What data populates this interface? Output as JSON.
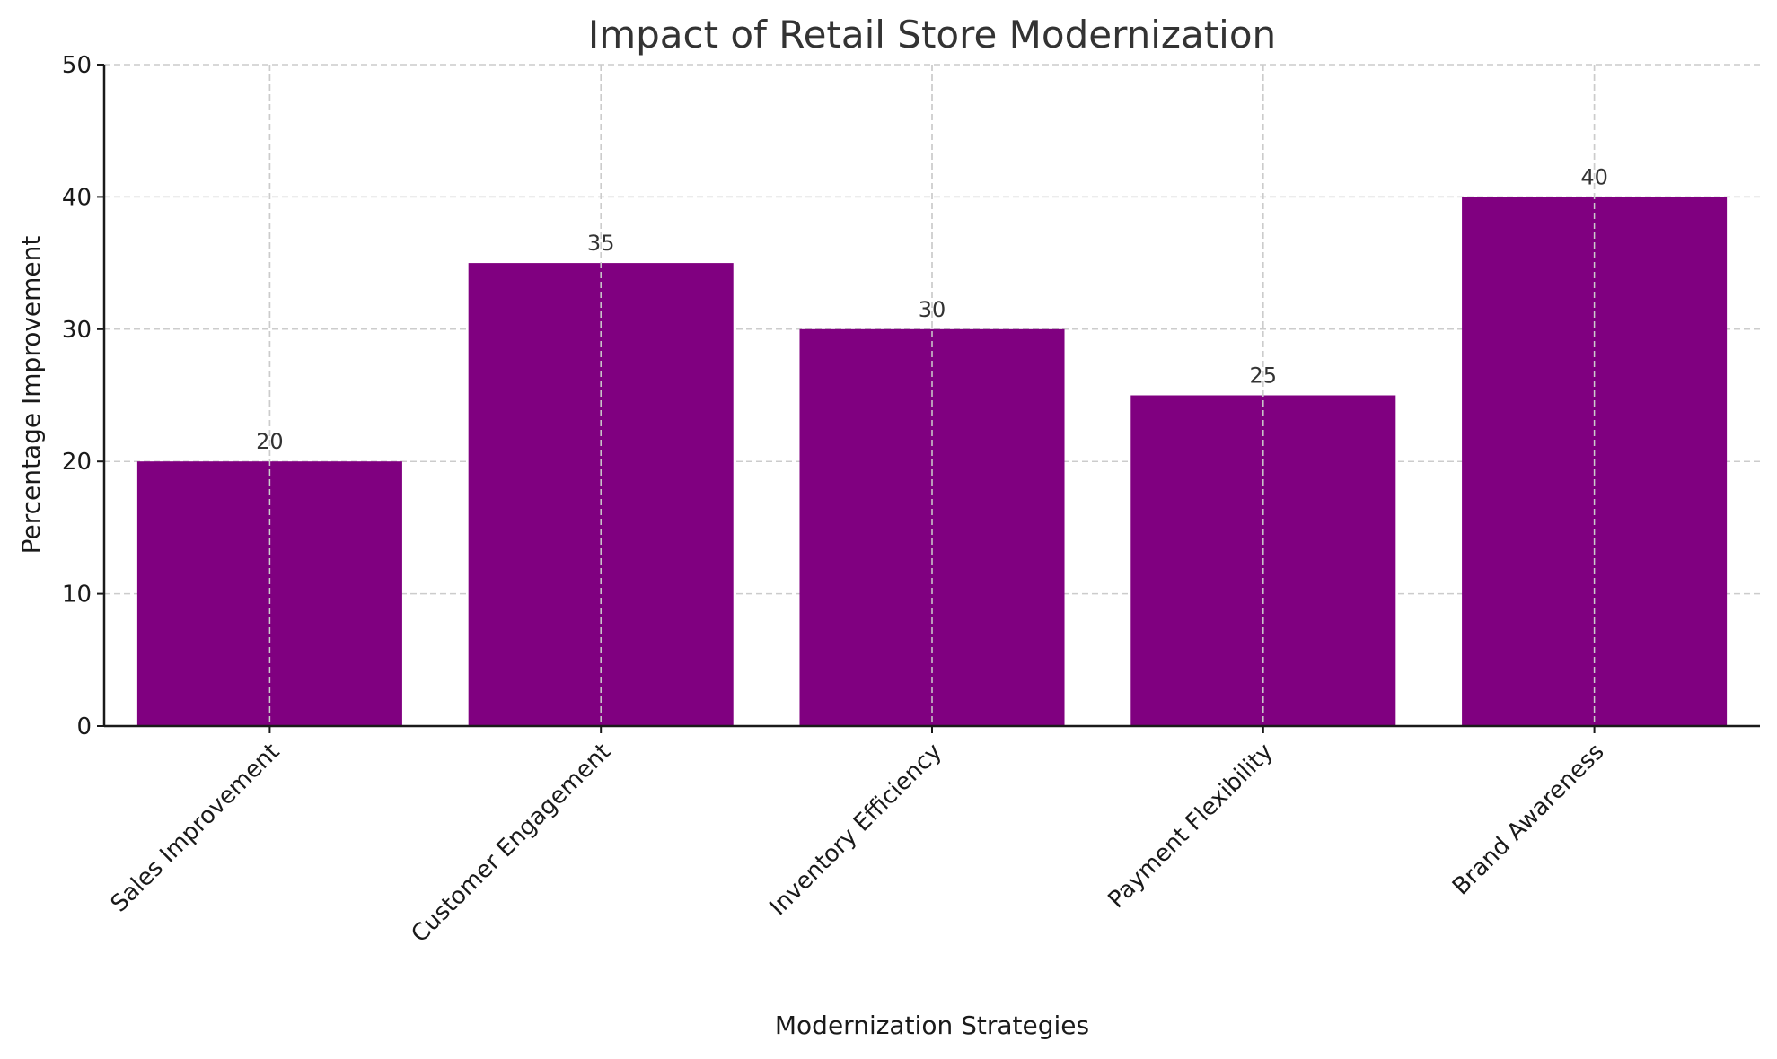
{
  "chart_data": {
    "type": "bar",
    "title": "Impact of Retail Store Modernization",
    "xlabel": "Modernization Strategies",
    "ylabel": "Percentage Improvement",
    "categories": [
      "Sales Improvement",
      "Customer Engagement",
      "Inventory Efficiency",
      "Payment Flexibility",
      "Brand Awareness"
    ],
    "values": [
      20,
      35,
      30,
      25,
      40
    ],
    "ylim": [
      0,
      50
    ],
    "yticks": [
      0,
      10,
      20,
      30,
      40,
      50
    ],
    "grid": true,
    "bar_color": "#800080",
    "data_labels": true
  }
}
